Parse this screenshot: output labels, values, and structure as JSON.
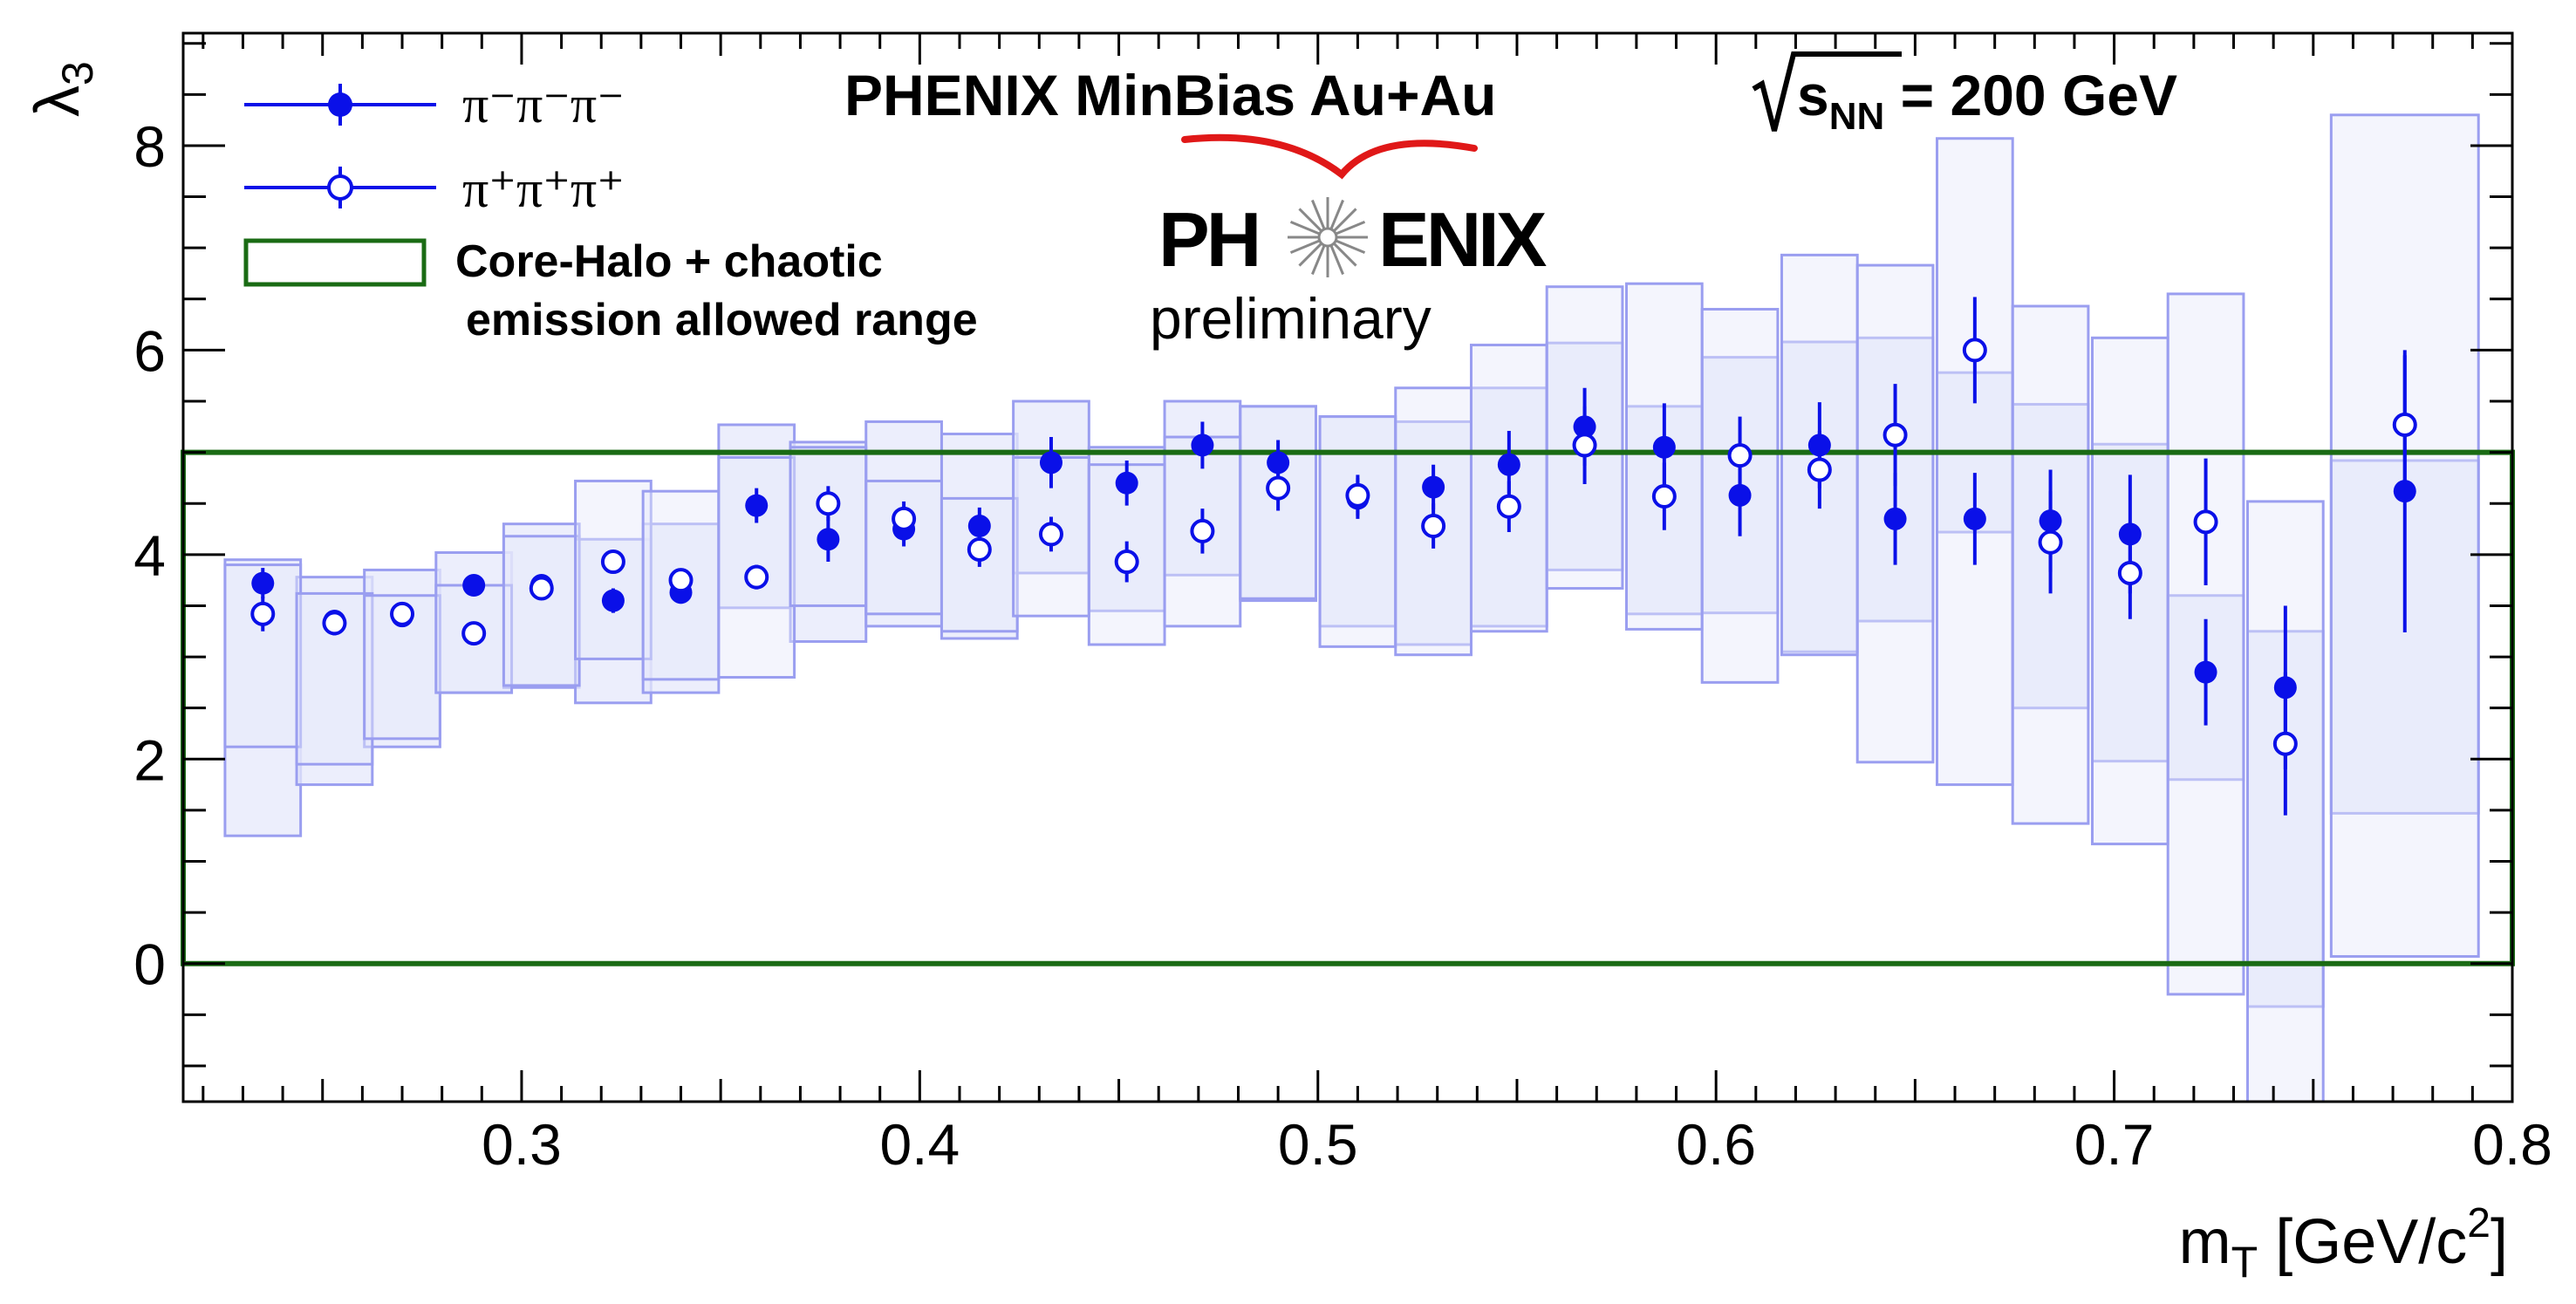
{
  "chart_data": {
    "type": "scatter",
    "title": "PHENIX MinBias Au+Au √s_NN = 200 GeV",
    "title_parts": {
      "pre": "PHENIX MinBias Au+Au ",
      "s": "s",
      "sub": "NN",
      "post": " = 200 GeV"
    },
    "xlabel": {
      "main": "m",
      "sub": "T",
      "rest": " [GeV/c",
      "sup": "2",
      "end": "]"
    },
    "ylabel": {
      "main": "λ",
      "sub": "3"
    },
    "xlim": [
      0.215,
      0.8
    ],
    "ylim": [
      -1.35,
      9.1
    ],
    "x_ticks": [
      "0.3",
      "0.4",
      "0.5",
      "0.6",
      "0.7",
      "0.8"
    ],
    "y_ticks": [
      "0",
      "2",
      "4",
      "6",
      "8"
    ],
    "logo": {
      "left": "PH",
      "right": "ENIX",
      "sub": "preliminary"
    },
    "colors": {
      "data": "#0a10e8",
      "box_fill": "#e6e8fb",
      "box_stroke": "#9a9ef0",
      "band": "#1a6b14",
      "swoosh": "#e01818"
    },
    "band": {
      "name_line1": "Core-Halo + chaotic",
      "name_line2": "emission allowed range",
      "y_range": [
        0,
        5
      ]
    },
    "series": [
      {
        "name": "π⁻π⁻π⁻",
        "marker": "filled",
        "points": [
          {
            "x": 0.235,
            "y": 3.72,
            "err": 0.15,
            "sys": [
              1.25,
              3.95
            ],
            "inner": [
              2.12,
              3.9
            ]
          },
          {
            "x": 0.253,
            "y": 3.35,
            "err": 0.1,
            "sys": [
              1.75,
              3.78
            ],
            "inner": [
              1.95,
              3.6
            ]
          },
          {
            "x": 0.27,
            "y": 3.4,
            "err": 0.07,
            "sys": [
              2.12,
              3.85
            ],
            "inner": [
              2.2,
              3.6
            ]
          },
          {
            "x": 0.288,
            "y": 3.7,
            "err": 0.1,
            "sys": [
              2.65,
              4.02
            ],
            "inner": [
              2.65,
              3.7
            ]
          },
          {
            "x": 0.305,
            "y": 3.7,
            "err": 0.09,
            "sys": [
              2.7,
              4.3
            ],
            "inner": [
              2.72,
              4.18
            ]
          },
          {
            "x": 0.323,
            "y": 3.55,
            "err": 0.12,
            "sys": [
              2.55,
              4.15
            ],
            "inner": [
              2.98,
              4.15
            ]
          },
          {
            "x": 0.34,
            "y": 3.63,
            "err": 0.11,
            "sys": [
              2.65,
              4.3
            ],
            "inner": [
              2.78,
              4.3
            ]
          },
          {
            "x": 0.359,
            "y": 4.48,
            "err": 0.17,
            "sys": [
              3.48,
              5.27
            ],
            "inner": [
              3.48,
              4.95
            ]
          },
          {
            "x": 0.377,
            "y": 4.15,
            "err": 0.22,
            "sys": [
              3.15,
              5.1
            ],
            "inner": [
              3.5,
              5.05
            ]
          },
          {
            "x": 0.396,
            "y": 4.25,
            "err": 0.17,
            "sys": [
              3.3,
              5.3
            ],
            "inner": [
              3.42,
              4.72
            ]
          },
          {
            "x": 0.415,
            "y": 4.28,
            "err": 0.18,
            "sys": [
              3.18,
              5.18
            ],
            "inner": [
              3.25,
              4.55
            ]
          },
          {
            "x": 0.433,
            "y": 4.9,
            "err": 0.25,
            "sys": [
              3.82,
              5.5
            ],
            "inner": [
              3.82,
              4.95
            ]
          },
          {
            "x": 0.452,
            "y": 4.7,
            "err": 0.22,
            "sys": [
              3.45,
              5.05
            ],
            "inner": [
              3.45,
              4.88
            ]
          },
          {
            "x": 0.471,
            "y": 5.07,
            "err": 0.23,
            "sys": [
              3.8,
              5.5
            ],
            "inner": [
              3.8,
              5.15
            ]
          },
          {
            "x": 0.49,
            "y": 4.9,
            "err": 0.22,
            "sys": [
              3.55,
              5.45
            ],
            "inner": [
              3.57,
              5.45
            ]
          },
          {
            "x": 0.51,
            "y": 4.55,
            "err": 0.2,
            "sys": [
              3.3,
              5.35
            ],
            "inner": [
              3.3,
              5.35
            ]
          },
          {
            "x": 0.529,
            "y": 4.66,
            "err": 0.22,
            "sys": [
              3.12,
              5.3
            ],
            "inner": [
              3.12,
              5.3
            ]
          },
          {
            "x": 0.548,
            "y": 4.88,
            "err": 0.33,
            "sys": [
              3.3,
              5.63
            ],
            "inner": [
              3.3,
              5.63
            ]
          },
          {
            "x": 0.567,
            "y": 5.25,
            "err": 0.38,
            "sys": [
              3.85,
              6.07
            ],
            "inner": [
              3.85,
              6.07
            ]
          },
          {
            "x": 0.587,
            "y": 5.05,
            "err": 0.43,
            "sys": [
              3.42,
              5.45
            ],
            "inner": [
              3.42,
              5.45
            ]
          },
          {
            "x": 0.606,
            "y": 4.58,
            "err": 0.4,
            "sys": [
              3.43,
              5.93
            ],
            "inner": [
              3.43,
              5.93
            ]
          },
          {
            "x": 0.626,
            "y": 5.07,
            "err": 0.42,
            "sys": [
              3.05,
              6.08
            ],
            "inner": [
              3.05,
              6.08
            ]
          },
          {
            "x": 0.645,
            "y": 4.35,
            "err": 0.45,
            "sys": [
              3.35,
              6.12
            ],
            "inner": [
              3.35,
              6.12
            ]
          },
          {
            "x": 0.665,
            "y": 4.35,
            "err": 0.45,
            "sys": [
              4.22,
              5.78
            ],
            "inner": [
              4.22,
              5.78
            ]
          },
          {
            "x": 0.684,
            "y": 4.33,
            "err": 0.5,
            "sys": [
              2.5,
              5.47
            ],
            "inner": [
              2.5,
              5.47
            ]
          },
          {
            "x": 0.704,
            "y": 4.2,
            "err": 0.58,
            "sys": [
              1.98,
              5.08
            ],
            "inner": [
              1.98,
              5.08
            ]
          },
          {
            "x": 0.723,
            "y": 2.85,
            "err": 0.52,
            "sys": [
              1.8,
              3.6
            ],
            "inner": [
              1.8,
              3.6
            ]
          },
          {
            "x": 0.743,
            "y": 2.7,
            "err": 0.8,
            "sys": [
              -0.42,
              3.25
            ],
            "inner": [
              -0.42,
              3.25
            ]
          },
          {
            "x": 0.773,
            "y": 4.62,
            "err": 1.38,
            "sys": [
              1.47,
              4.92
            ],
            "inner": [
              1.47,
              4.92
            ]
          }
        ]
      },
      {
        "name": "π⁺π⁺π⁺",
        "marker": "open",
        "points": [
          {
            "x": 0.235,
            "y": 3.42,
            "err": 0.17,
            "sys": [
              2.12,
              3.9
            ]
          },
          {
            "x": 0.253,
            "y": 3.33,
            "err": 0.12,
            "sys": [
              1.95,
              3.62
            ]
          },
          {
            "x": 0.27,
            "y": 3.42,
            "err": 0.1,
            "sys": [
              2.2,
              3.6
            ]
          },
          {
            "x": 0.288,
            "y": 3.23,
            "err": 0.1,
            "sys": [
              2.65,
              3.7
            ]
          },
          {
            "x": 0.305,
            "y": 3.67,
            "err": 0.1,
            "sys": [
              2.72,
              4.18
            ]
          },
          {
            "x": 0.323,
            "y": 3.93,
            "err": 0.1,
            "sys": [
              2.98,
              4.72
            ]
          },
          {
            "x": 0.34,
            "y": 3.75,
            "err": 0.1,
            "sys": [
              2.78,
              4.62
            ]
          },
          {
            "x": 0.359,
            "y": 3.78,
            "err": 0.12,
            "sys": [
              2.8,
              4.95
            ]
          },
          {
            "x": 0.377,
            "y": 4.5,
            "err": 0.17,
            "sys": [
              3.5,
              5.05
            ]
          },
          {
            "x": 0.396,
            "y": 4.35,
            "err": 0.17,
            "sys": [
              3.42,
              4.72
            ]
          },
          {
            "x": 0.415,
            "y": 4.05,
            "err": 0.17,
            "sys": [
              3.25,
              4.55
            ]
          },
          {
            "x": 0.433,
            "y": 4.2,
            "err": 0.17,
            "sys": [
              3.4,
              4.95
            ]
          },
          {
            "x": 0.452,
            "y": 3.93,
            "err": 0.2,
            "sys": [
              3.12,
              4.88
            ]
          },
          {
            "x": 0.471,
            "y": 4.23,
            "err": 0.22,
            "sys": [
              3.3,
              5.15
            ]
          },
          {
            "x": 0.49,
            "y": 4.65,
            "err": 0.22,
            "sys": [
              3.57,
              5.45
            ]
          },
          {
            "x": 0.51,
            "y": 4.58,
            "err": 0.2,
            "sys": [
              3.1,
              5.35
            ]
          },
          {
            "x": 0.529,
            "y": 4.28,
            "err": 0.22,
            "sys": [
              3.02,
              5.63
            ]
          },
          {
            "x": 0.548,
            "y": 4.47,
            "err": 0.25,
            "sys": [
              3.25,
              6.05
            ]
          },
          {
            "x": 0.567,
            "y": 5.07,
            "err": 0.38,
            "sys": [
              3.67,
              6.62
            ]
          },
          {
            "x": 0.587,
            "y": 4.57,
            "err": 0.33,
            "sys": [
              3.27,
              6.65
            ]
          },
          {
            "x": 0.606,
            "y": 4.97,
            "err": 0.38,
            "sys": [
              2.75,
              6.4
            ]
          },
          {
            "x": 0.626,
            "y": 4.83,
            "err": 0.38,
            "sys": [
              3.02,
              6.93
            ]
          },
          {
            "x": 0.645,
            "y": 5.17,
            "err": 0.5,
            "sys": [
              1.97,
              6.83
            ]
          },
          {
            "x": 0.665,
            "y": 6.0,
            "err": 0.52,
            "sys": [
              1.75,
              8.07
            ]
          },
          {
            "x": 0.684,
            "y": 4.12,
            "err": 0.5,
            "sys": [
              1.37,
              6.43
            ]
          },
          {
            "x": 0.704,
            "y": 3.82,
            "err": 0.45,
            "sys": [
              1.17,
              6.12
            ]
          },
          {
            "x": 0.723,
            "y": 4.32,
            "err": 0.62,
            "sys": [
              -0.3,
              6.55
            ]
          },
          {
            "x": 0.743,
            "y": 2.15,
            "err": 0.7,
            "sys": [
              -1.35,
              4.52
            ]
          },
          {
            "x": 0.773,
            "y": 5.27,
            "err": 0.68,
            "sys": [
              0.07,
              8.3
            ]
          }
        ]
      }
    ]
  }
}
